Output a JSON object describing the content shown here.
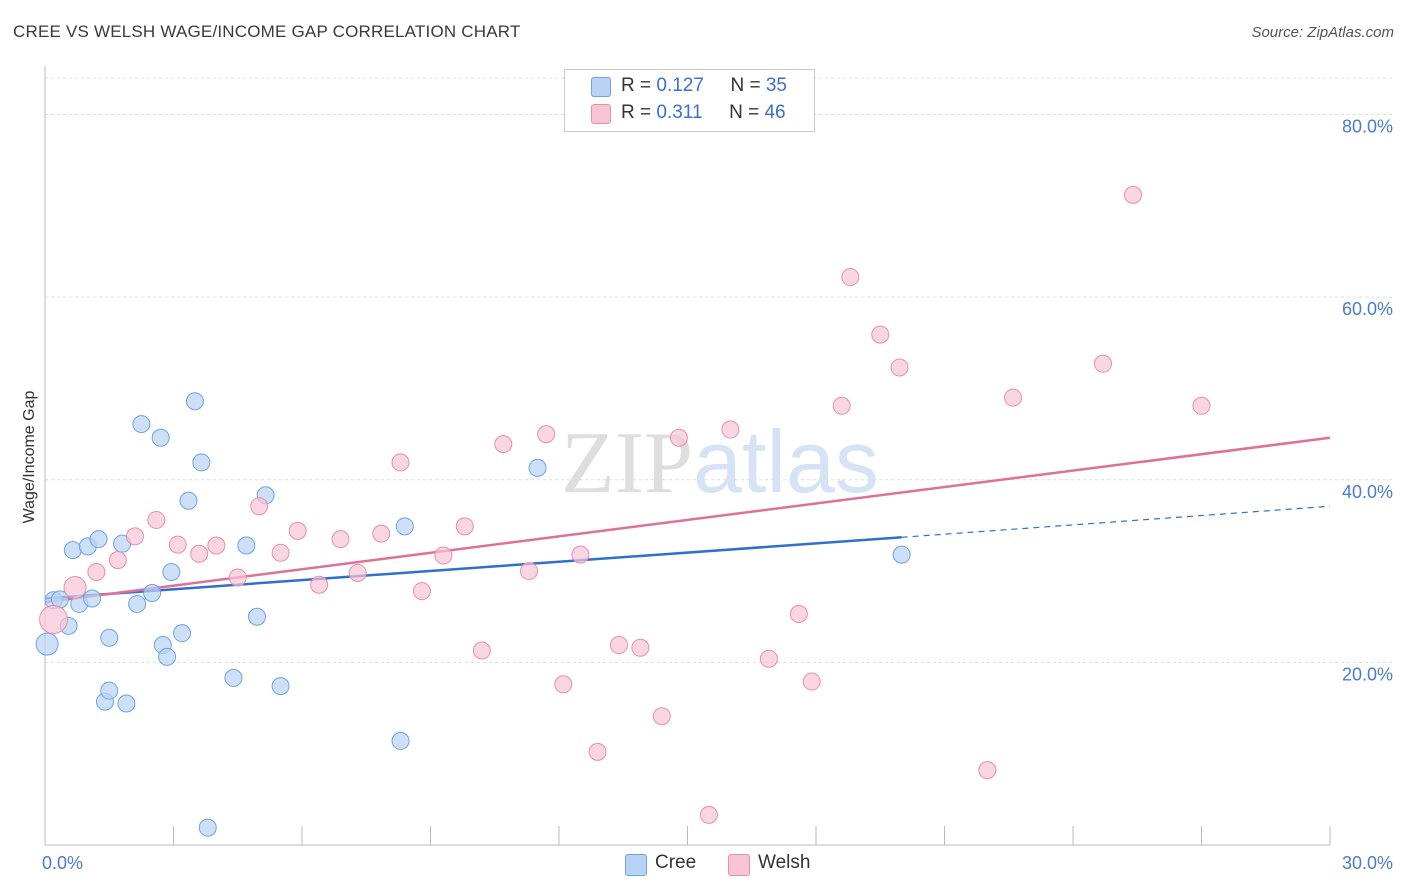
{
  "title": "CREE VS WELSH WAGE/INCOME GAP CORRELATION CHART",
  "source": "Source: ZipAtlas.com",
  "watermark": "ZIPatlas",
  "legend": {
    "rows": [
      {
        "r_label": "R = ",
        "r_value": "0.127",
        "n_label": "N = ",
        "n_value": "35"
      },
      {
        "r_label": "R = ",
        "r_value": "0.311",
        "n_label": "N = ",
        "n_value": "46"
      }
    ]
  },
  "bottom_legend": [
    "Cree",
    "Welsh"
  ],
  "chart_data": {
    "type": "scatter",
    "title": "CREE VS WELSH WAGE/INCOME GAP CORRELATION CHART",
    "xlabel": "",
    "ylabel": "Wage/Income Gap",
    "xlim": [
      0,
      30
    ],
    "ylim": [
      0,
      84
    ],
    "x_tick_labels": [
      {
        "value": 0,
        "label": "0.0%"
      },
      {
        "value": 30,
        "label": "30.0%"
      }
    ],
    "y_tick_labels": [
      {
        "value": 20,
        "label": "20.0%"
      },
      {
        "value": 40,
        "label": "40.0%"
      },
      {
        "value": 60,
        "label": "60.0%"
      },
      {
        "value": 80,
        "label": "80.0%"
      }
    ],
    "grid": true,
    "series": [
      {
        "name": "Cree",
        "color": "#6fa3e8",
        "fill": "#b9d3f5",
        "line_color": "#2f6fcf",
        "trend": {
          "x0": 0,
          "y0": 27.0,
          "x1": 20.0,
          "y1": 33.7,
          "dashed_to_x": 30,
          "dashed_to_y": 37.1
        },
        "points": [
          [
            0.05,
            22.0
          ],
          [
            0.2,
            26.8
          ],
          [
            0.35,
            26.9
          ],
          [
            0.55,
            24.0
          ],
          [
            0.65,
            32.3
          ],
          [
            0.8,
            26.4
          ],
          [
            1.0,
            32.7
          ],
          [
            1.1,
            27.0
          ],
          [
            1.25,
            33.5
          ],
          [
            1.5,
            22.7
          ],
          [
            1.4,
            15.7
          ],
          [
            1.5,
            16.9
          ],
          [
            1.8,
            33.0
          ],
          [
            1.9,
            15.5
          ],
          [
            2.15,
            26.4
          ],
          [
            2.25,
            46.1
          ],
          [
            2.5,
            27.6
          ],
          [
            2.7,
            44.6
          ],
          [
            2.75,
            21.9
          ],
          [
            2.85,
            20.6
          ],
          [
            2.95,
            29.9
          ],
          [
            3.2,
            23.2
          ],
          [
            3.35,
            37.7
          ],
          [
            3.5,
            48.6
          ],
          [
            3.65,
            41.9
          ],
          [
            3.8,
            1.9
          ],
          [
            4.4,
            18.3
          ],
          [
            4.7,
            32.8
          ],
          [
            4.95,
            25.0
          ],
          [
            5.15,
            38.3
          ],
          [
            5.5,
            17.4
          ],
          [
            8.3,
            11.4
          ],
          [
            8.4,
            34.9
          ],
          [
            11.5,
            41.3
          ],
          [
            20.0,
            31.8
          ]
        ]
      },
      {
        "name": "Welsh",
        "color": "#e88fae",
        "fill": "#f7c4d4",
        "line_color": "#e07099",
        "trend": {
          "x0": 0,
          "y0": 26.6,
          "x1": 30,
          "y1": 44.6
        },
        "points": [
          [
            0.2,
            24.7
          ],
          [
            0.7,
            28.2
          ],
          [
            1.2,
            29.9
          ],
          [
            1.7,
            31.2
          ],
          [
            2.1,
            33.8
          ],
          [
            2.6,
            35.6
          ],
          [
            3.1,
            32.9
          ],
          [
            3.6,
            31.9
          ],
          [
            4.0,
            32.8
          ],
          [
            4.5,
            29.3
          ],
          [
            5.0,
            37.1
          ],
          [
            5.5,
            32.0
          ],
          [
            5.9,
            34.4
          ],
          [
            6.4,
            28.5
          ],
          [
            6.9,
            33.5
          ],
          [
            7.3,
            29.8
          ],
          [
            7.85,
            34.1
          ],
          [
            8.3,
            41.9
          ],
          [
            8.8,
            27.8
          ],
          [
            9.3,
            31.7
          ],
          [
            9.8,
            34.9
          ],
          [
            10.2,
            21.3
          ],
          [
            10.7,
            43.9
          ],
          [
            11.3,
            30.0
          ],
          [
            11.7,
            45.0
          ],
          [
            12.1,
            17.6
          ],
          [
            12.5,
            31.8
          ],
          [
            12.9,
            10.2
          ],
          [
            13.4,
            21.9
          ],
          [
            13.9,
            21.6
          ],
          [
            14.4,
            14.1
          ],
          [
            14.8,
            44.6
          ],
          [
            15.5,
            3.3
          ],
          [
            16.0,
            45.5
          ],
          [
            16.9,
            20.4
          ],
          [
            17.6,
            25.3
          ],
          [
            17.9,
            17.9
          ],
          [
            18.6,
            48.1
          ],
          [
            18.8,
            62.2
          ],
          [
            19.5,
            55.9
          ],
          [
            19.95,
            52.3
          ],
          [
            22.0,
            8.2
          ],
          [
            22.6,
            49.0
          ],
          [
            24.7,
            52.7
          ],
          [
            25.4,
            71.2
          ],
          [
            27.0,
            48.1
          ]
        ]
      }
    ]
  }
}
